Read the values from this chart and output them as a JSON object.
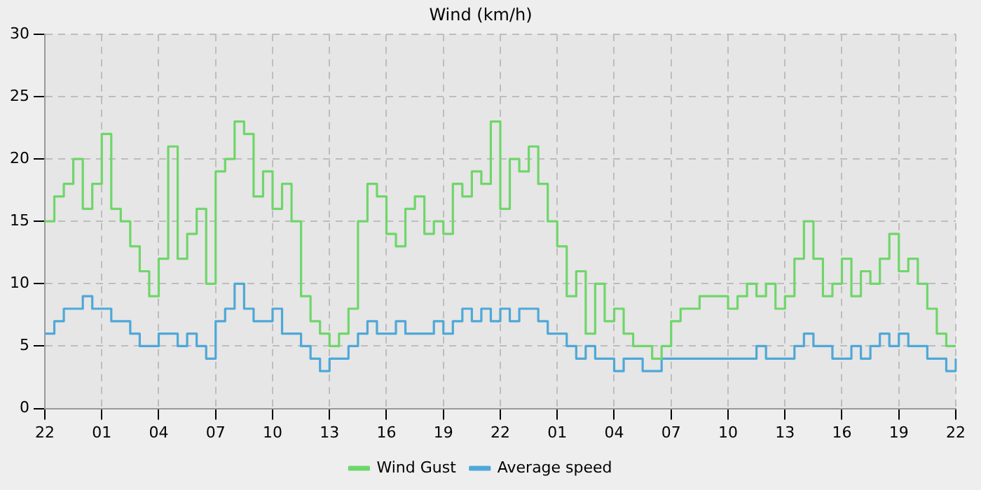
{
  "chart_data": {
    "type": "step",
    "title": "Wind (km/h)",
    "categories": [
      "22",
      null,
      null,
      null,
      null,
      null,
      "01",
      null,
      null,
      null,
      null,
      null,
      "04",
      null,
      null,
      null,
      null,
      null,
      "07",
      null,
      null,
      null,
      null,
      null,
      "10",
      null,
      null,
      null,
      null,
      null,
      "13",
      null,
      null,
      null,
      null,
      null,
      "16",
      null,
      null,
      null,
      null,
      null,
      "19",
      null,
      null,
      null,
      null,
      null,
      "22",
      null,
      null,
      null,
      null,
      null,
      "01",
      null,
      null,
      null,
      null,
      null,
      "04",
      null,
      null,
      null,
      null,
      null,
      "07",
      null,
      null,
      null,
      null,
      null,
      "10",
      null,
      null,
      null,
      null,
      null,
      "13",
      null,
      null,
      null,
      null,
      null,
      "16",
      null,
      null,
      null,
      null,
      null,
      "19",
      null,
      null,
      null,
      null,
      null,
      "22"
    ],
    "series": [
      {
        "name": "Wind Gust",
        "color": "#6fd66a",
        "values": [
          15,
          17,
          18,
          20,
          16,
          18,
          22,
          16,
          15,
          13,
          11,
          9,
          12,
          21,
          12,
          14,
          16,
          10,
          19,
          20,
          23,
          22,
          17,
          19,
          16,
          18,
          15,
          9,
          7,
          6,
          5,
          6,
          8,
          15,
          18,
          17,
          14,
          13,
          16,
          17,
          14,
          15,
          14,
          18,
          17,
          19,
          18,
          23,
          16,
          20,
          19,
          21,
          18,
          15,
          13,
          9,
          11,
          6,
          10,
          7,
          8,
          6,
          5,
          5,
          4,
          5,
          7,
          8,
          8,
          9,
          9,
          9,
          8,
          9,
          10,
          9,
          10,
          8,
          9,
          12,
          15,
          12,
          9,
          10,
          12,
          9,
          11,
          10,
          12,
          14,
          11,
          12,
          10,
          8,
          6,
          5,
          5
        ]
      },
      {
        "name": "Average speed",
        "color": "#4ea8d8",
        "values": [
          6,
          7,
          8,
          8,
          9,
          8,
          8,
          7,
          7,
          6,
          5,
          5,
          6,
          6,
          5,
          6,
          5,
          4,
          7,
          8,
          10,
          8,
          7,
          7,
          8,
          6,
          6,
          5,
          4,
          3,
          4,
          4,
          5,
          6,
          7,
          6,
          6,
          7,
          6,
          6,
          6,
          7,
          6,
          7,
          8,
          7,
          8,
          7,
          8,
          7,
          8,
          8,
          7,
          6,
          6,
          5,
          4,
          5,
          4,
          4,
          3,
          4,
          4,
          3,
          3,
          4,
          4,
          4,
          4,
          4,
          4,
          4,
          4,
          4,
          4,
          5,
          4,
          4,
          4,
          5,
          6,
          5,
          5,
          4,
          4,
          5,
          4,
          5,
          6,
          5,
          6,
          5,
          5,
          4,
          4,
          3,
          4
        ]
      }
    ],
    "ylim": [
      0,
      30
    ],
    "yticks": [
      0,
      5,
      10,
      15,
      20,
      25,
      30
    ],
    "grid": true,
    "legend": "bottom",
    "marker": "none",
    "line_style": "solid"
  }
}
